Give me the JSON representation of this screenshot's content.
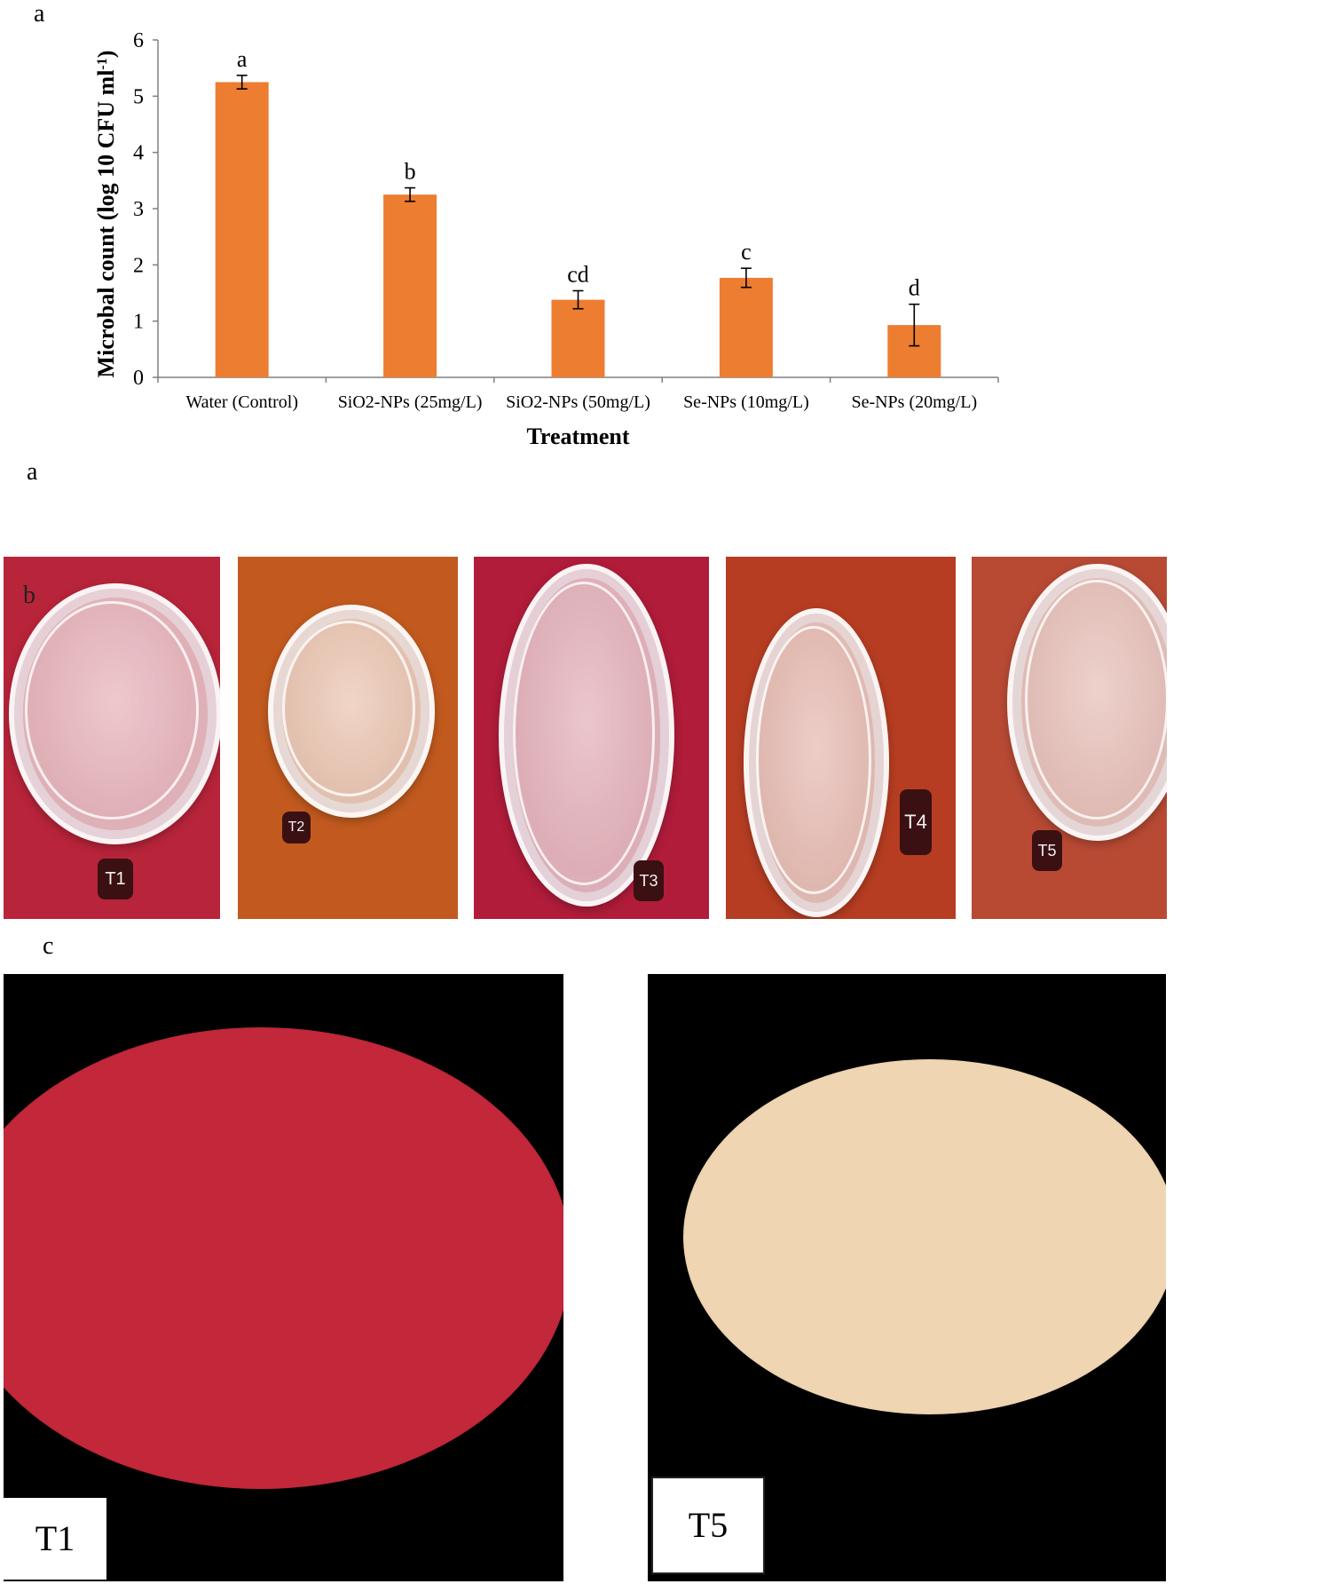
{
  "panels": {
    "a_chart_letter": "a",
    "a_under_letter": "a",
    "b_letter": "b",
    "c_letter": "c"
  },
  "chart_data": {
    "type": "bar",
    "categories": [
      "Water (Control)",
      "SiO2-NPs (25mg/L)",
      "SiO2-NPs (50mg/L)",
      "Se-NPs (10mg/L)",
      "Se-NPs (20mg/L)"
    ],
    "values": [
      5.25,
      3.25,
      1.38,
      1.77,
      0.93
    ],
    "errors": [
      0.12,
      0.12,
      0.16,
      0.17,
      0.37
    ],
    "significance_letters": [
      "a",
      "b",
      "cd",
      "c",
      "d"
    ],
    "xlabel": "Treatment",
    "ylabel": "Microbal count (log 10 CFU ml",
    "ylabel_superscript": "-1",
    "ylabel_close": ")",
    "ylim": [
      0,
      6
    ],
    "yticks": [
      0,
      1,
      2,
      3,
      4,
      5,
      6
    ],
    "bar_color": "#ed7d31",
    "grid": false
  },
  "plates": [
    {
      "label": "T1",
      "bg": "#b8243a"
    },
    {
      "label": "T2",
      "bg": "#c25a1f"
    },
    {
      "label": "T3",
      "bg": "#b01c3a"
    },
    {
      "label": "T4",
      "bg": "#b63d22"
    },
    {
      "label": "T5",
      "bg": "#b84a34"
    }
  ],
  "micrographs": [
    {
      "label": "T1",
      "field_color": "#c2273a"
    },
    {
      "label": "T5",
      "field_color": "#efd5b2"
    }
  ]
}
